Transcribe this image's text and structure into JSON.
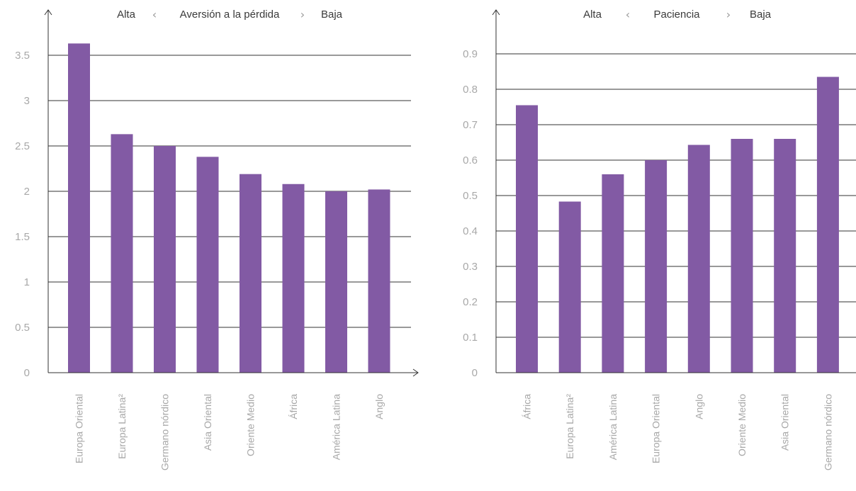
{
  "colors": {
    "bar": "#825AA4",
    "grid": "#333333",
    "tick": "#a8a8a8",
    "header": "#3a3a3a"
  },
  "chart_data": [
    {
      "type": "bar",
      "header": {
        "left": "Alta",
        "chevron_left": "‹",
        "title": "Aversión a la pérdida",
        "chevron_right": "›",
        "right": "Baja"
      },
      "categories": [
        "Europa Oriental",
        "Europa Latina²",
        "Germano nórdico",
        "Asia Oriental",
        "Oriente Medio",
        "África",
        "América Latina",
        "Anglo"
      ],
      "values": [
        3.63,
        2.63,
        2.5,
        2.38,
        2.19,
        2.08,
        2.0,
        2.02
      ],
      "yticks": [
        "0",
        "0.5",
        "1",
        "1.5",
        "2",
        "2.5",
        "3",
        "3.5"
      ],
      "ylim": [
        0,
        4
      ],
      "grid": true
    },
    {
      "type": "bar",
      "header": {
        "left": "Alta",
        "chevron_left": "‹",
        "title": "Paciencia",
        "chevron_right": "›",
        "right": "Baja"
      },
      "categories": [
        "África",
        "Europa Latina²",
        "América Latina",
        "Europa Oriental",
        "Anglo",
        "Oriente Medio",
        "Asia Oriental",
        "Germano nórdico"
      ],
      "values": [
        0.755,
        0.483,
        0.56,
        0.6,
        0.643,
        0.66,
        0.66,
        0.835
      ],
      "yticks": [
        "0",
        "0.1",
        "0.2",
        "0.3",
        "0.4",
        "0.5",
        "0.6",
        "0.7",
        "0.8",
        "0.9"
      ],
      "ylim": [
        0,
        1
      ],
      "grid": true
    }
  ]
}
